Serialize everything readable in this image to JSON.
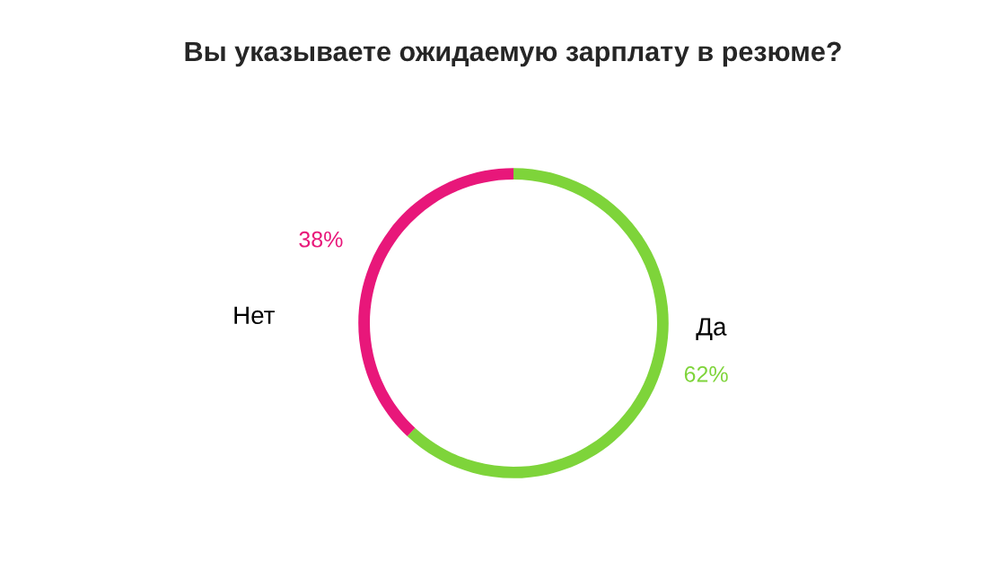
{
  "chart_data": {
    "type": "donut",
    "title": "Вы указываете ожидаемую зарплату в резюме?",
    "categories": [
      "Да",
      "Нет"
    ],
    "values": [
      62,
      38
    ],
    "colors": [
      "#7ed43a",
      "#e8177a"
    ],
    "value_labels": [
      "62%",
      "38%"
    ],
    "legend": false
  }
}
